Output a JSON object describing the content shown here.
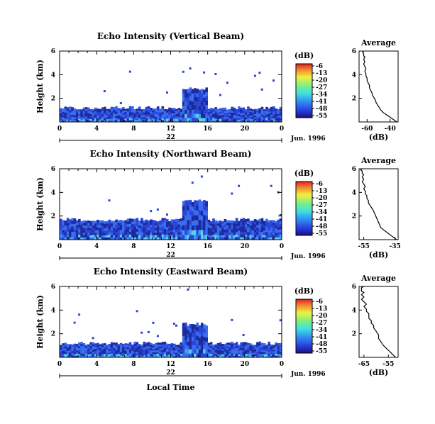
{
  "chart_data": [
    {
      "type": "heatmap",
      "title": "Echo Intensity (Vertical Beam)",
      "ylabel": "Height (km)",
      "y_ticks": [
        "2",
        "4",
        "6"
      ],
      "x_ticks": [
        "0",
        "4",
        "8",
        "12",
        "16",
        "20",
        "0"
      ],
      "xlim": [
        0,
        24
      ],
      "ylim": [
        0,
        6
      ],
      "date_day": "22",
      "date_label": "Jun. 1996",
      "colorbar": {
        "unit": "(dB)",
        "labels": [
          "-6",
          "-13",
          "-20",
          "-27",
          "-34",
          "-41",
          "-48",
          "-55"
        ]
      },
      "profile": [
        0.5,
        4.0,
        7.0,
        3.5,
        1.0,
        0.5,
        0.5
      ]
    },
    {
      "type": "heatmap",
      "title": "Echo Intensity (Northward Beam)",
      "ylabel": "Height (km)",
      "y_ticks": [
        "2",
        "4",
        "6"
      ],
      "x_ticks": [
        "0",
        "4",
        "8",
        "12",
        "16",
        "20",
        "0"
      ],
      "xlim": [
        0,
        24
      ],
      "ylim": [
        0,
        6
      ],
      "date_day": "22",
      "date_label": "Jun. 1996",
      "colorbar": {
        "unit": "(dB)",
        "labels": [
          "-6",
          "-13",
          "-20",
          "-27",
          "-34",
          "-41",
          "-48",
          "-55"
        ]
      },
      "profile": [
        1.0,
        4.5,
        7.0,
        5.0,
        1.5,
        0.5,
        0.5
      ]
    },
    {
      "type": "heatmap",
      "title": "Echo Intensity (Eastward Beam)",
      "ylabel": "Height (km)",
      "xlabel": "Local Time",
      "y_ticks": [
        "2",
        "4",
        "6"
      ],
      "x_ticks": [
        "0",
        "4",
        "8",
        "12",
        "16",
        "20",
        "0"
      ],
      "xlim": [
        0,
        24
      ],
      "ylim": [
        0,
        6
      ],
      "date_day": "22",
      "date_label": "Jun. 1996",
      "colorbar": {
        "unit": "(dB)",
        "labels": [
          "-6",
          "-13",
          "-20",
          "-27",
          "-34",
          "-41",
          "-48",
          "-55"
        ]
      },
      "profile": [
        0.5,
        4.5,
        7.0,
        4.0,
        1.5,
        0.5,
        0.5
      ]
    },
    {
      "type": "line",
      "title": "Average",
      "xlabel": "(dB)",
      "x_ticks": [
        "-60",
        "-40"
      ],
      "y_ticks": [
        "2",
        "4",
        "6"
      ],
      "xlim": [
        -67,
        -33
      ],
      "ylim": [
        0,
        6
      ],
      "x": [
        -34,
        -37,
        -40,
        -43,
        -46,
        -48,
        -50,
        -52,
        -53,
        -55,
        -56,
        -57,
        -58,
        -58,
        -59,
        -60,
        -60,
        -61,
        -61,
        -62,
        -61,
        -62,
        -63,
        -62,
        -63,
        -62,
        -63,
        -63,
        -63,
        -64,
        -63
      ],
      "y": [
        0.0,
        0.2,
        0.4,
        0.6,
        0.8,
        1.0,
        1.3,
        1.6,
        1.9,
        2.2,
        2.5,
        2.7,
        2.9,
        3.1,
        3.3,
        3.5,
        3.7,
        3.9,
        4.1,
        4.3,
        4.5,
        4.7,
        4.9,
        5.1,
        5.3,
        5.5,
        5.6,
        5.7,
        5.8,
        5.9,
        6.0
      ]
    },
    {
      "type": "line",
      "title": "Average",
      "xlabel": "(dB)",
      "x_ticks": [
        "-55",
        "-35"
      ],
      "y_ticks": [
        "2",
        "4",
        "6"
      ],
      "xlim": [
        -58,
        -33
      ],
      "ylim": [
        0,
        6
      ],
      "x": [
        -34,
        -36,
        -38,
        -40,
        -42,
        -44,
        -45,
        -46,
        -47,
        -48,
        -49,
        -50,
        -51,
        -52,
        -52,
        -53,
        -53,
        -54,
        -54,
        -55,
        -54,
        -55,
        -56,
        -55,
        -56,
        -55,
        -56,
        -56,
        -56,
        -57,
        -56
      ],
      "y": [
        0.0,
        0.2,
        0.4,
        0.6,
        0.8,
        1.0,
        1.3,
        1.6,
        1.9,
        2.2,
        2.5,
        2.7,
        2.9,
        3.1,
        3.3,
        3.5,
        3.7,
        3.9,
        4.1,
        4.3,
        4.5,
        4.7,
        4.9,
        5.1,
        5.3,
        5.5,
        5.6,
        5.7,
        5.8,
        5.9,
        6.0
      ]
    },
    {
      "type": "line",
      "title": "Average",
      "xlabel": "(dB)",
      "x_ticks": [
        "-65",
        "-55"
      ],
      "y_ticks": [
        "2",
        "4",
        "6"
      ],
      "xlim": [
        -67,
        -51
      ],
      "ylim": [
        0,
        6
      ],
      "x": [
        -52,
        -53,
        -54,
        -55,
        -56,
        -57,
        -58,
        -59,
        -59,
        -60,
        -61,
        -61,
        -62,
        -62,
        -63,
        -63,
        -63,
        -64,
        -64,
        -65,
        -64,
        -65,
        -66,
        -65,
        -66,
        -65,
        -66,
        -66,
        -66,
        -66,
        -65
      ],
      "y": [
        0.0,
        0.2,
        0.4,
        0.6,
        0.8,
        1.0,
        1.3,
        1.6,
        1.9,
        2.2,
        2.5,
        2.7,
        2.9,
        3.1,
        3.3,
        3.5,
        3.7,
        3.9,
        4.1,
        4.3,
        4.5,
        4.7,
        4.9,
        5.1,
        5.3,
        5.5,
        5.6,
        5.7,
        5.8,
        5.9,
        6.0
      ]
    }
  ]
}
